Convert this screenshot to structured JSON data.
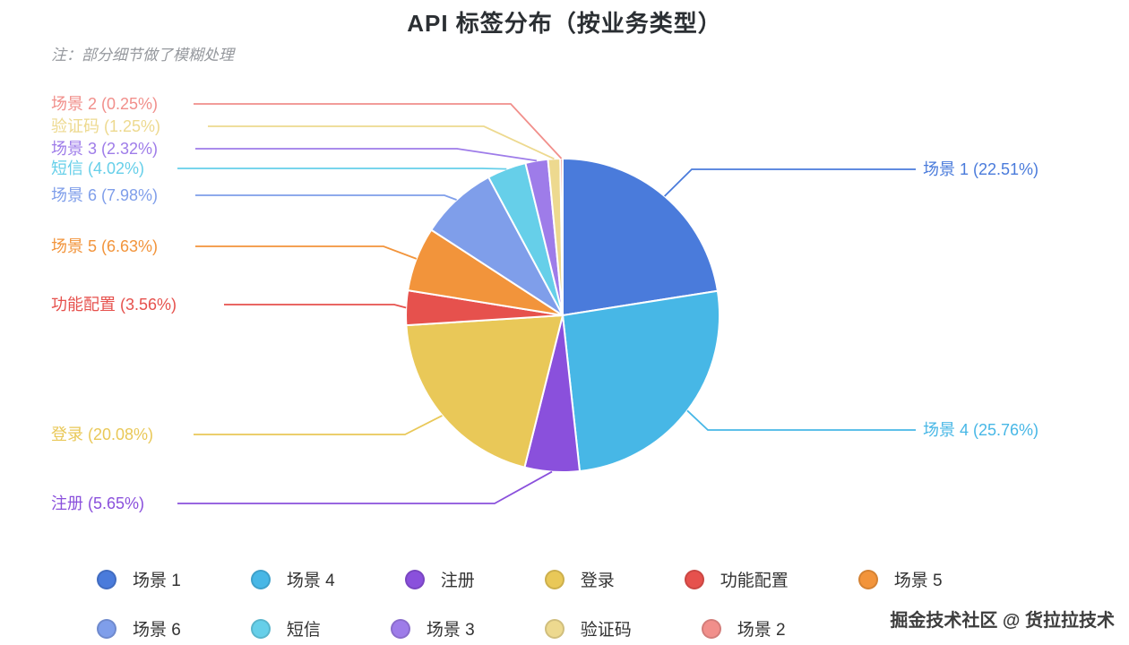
{
  "title": "API 标签分布（按业务类型）",
  "note": "注：部分细节做了模糊处理",
  "watermark": "掘金技术社区 @ 货拉拉技术",
  "chart_data": {
    "type": "pie",
    "title": "API 标签分布（按业务类型）",
    "direction": "clockwise",
    "start_angle": "top",
    "label_format": "{name} ({value}%)",
    "legend_position": "bottom",
    "series": [
      {
        "name": "场景 1",
        "value": 22.51,
        "color": "#4a7bdb"
      },
      {
        "name": "场景 4",
        "value": 25.76,
        "color": "#47b7e6"
      },
      {
        "name": "注册",
        "value": 5.65,
        "color": "#8a50dc"
      },
      {
        "name": "登录",
        "value": 20.08,
        "color": "#e9c858"
      },
      {
        "name": "功能配置",
        "value": 3.56,
        "color": "#e6514d"
      },
      {
        "name": "场景 5",
        "value": 6.63,
        "color": "#f2943b"
      },
      {
        "name": "场景 6",
        "value": 7.98,
        "color": "#7f9eea"
      },
      {
        "name": "短信",
        "value": 4.02,
        "color": "#66cfe9"
      },
      {
        "name": "场景 3",
        "value": 2.32,
        "color": "#9e7ce9"
      },
      {
        "name": "验证码",
        "value": 1.25,
        "color": "#edd98f"
      },
      {
        "name": "场景 2",
        "value": 0.25,
        "color": "#f18f8b"
      }
    ],
    "legend_rows": [
      [
        "场景 1",
        "场景 4",
        "注册",
        "登录",
        "功能配置",
        "场景 5"
      ],
      [
        "场景 6",
        "短信",
        "场景 3",
        "验证码",
        "场景 2"
      ]
    ]
  }
}
